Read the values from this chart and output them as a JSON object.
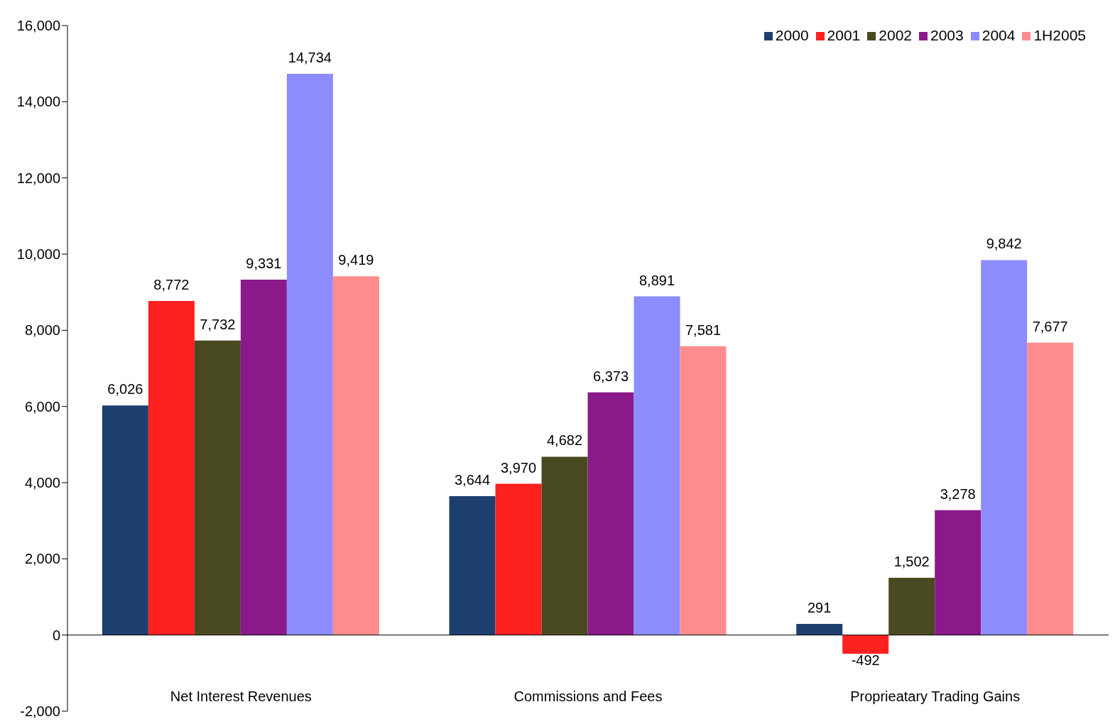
{
  "chart_data": {
    "type": "bar",
    "categories": [
      "Net Interest Revenues",
      "Commissions and Fees",
      "Proprieatary Trading Gains"
    ],
    "series": [
      {
        "name": "2000",
        "color": "#1c3f6e",
        "values": [
          6026,
          3644,
          291
        ],
        "value_labels": [
          "6,026",
          "3,644",
          "291"
        ]
      },
      {
        "name": "2001",
        "color": "#ff2020",
        "values": [
          8772,
          3970,
          -492
        ],
        "value_labels": [
          "8,772",
          "3,970",
          "-492"
        ]
      },
      {
        "name": "2002",
        "color": "#4a4a20",
        "values": [
          7732,
          4682,
          1502
        ],
        "value_labels": [
          "7,732",
          "4,682",
          "1,502"
        ]
      },
      {
        "name": "2003",
        "color": "#8a1a8a",
        "values": [
          9331,
          6373,
          3278
        ],
        "value_labels": [
          "9,331",
          "6,373",
          "3,278"
        ]
      },
      {
        "name": "2004",
        "color": "#8c8cff",
        "values": [
          14734,
          8891,
          9842
        ],
        "value_labels": [
          "14,734",
          "8,891",
          "9,842"
        ]
      },
      {
        "name": "1H2005",
        "color": "#ff8c8c",
        "values": [
          9419,
          7581,
          7677
        ],
        "value_labels": [
          "9,419",
          "7,581",
          "7,677"
        ]
      }
    ],
    "ylim": [
      -2000,
      16000
    ],
    "yticks": [
      {
        "value": -2000,
        "label": "-2,000"
      },
      0,
      {
        "value": 2000,
        "label": "2,000"
      },
      {
        "value": 4000,
        "label": "4,000"
      },
      {
        "value": 6000,
        "label": "6,000"
      },
      {
        "value": 8000,
        "label": "8,000"
      },
      {
        "value": 10000,
        "label": "10,000"
      },
      {
        "value": 12000,
        "label": "12,000"
      },
      {
        "value": 14000,
        "label": "14,000"
      },
      {
        "value": 16000,
        "label": "16,000"
      }
    ],
    "legend": "top right"
  }
}
